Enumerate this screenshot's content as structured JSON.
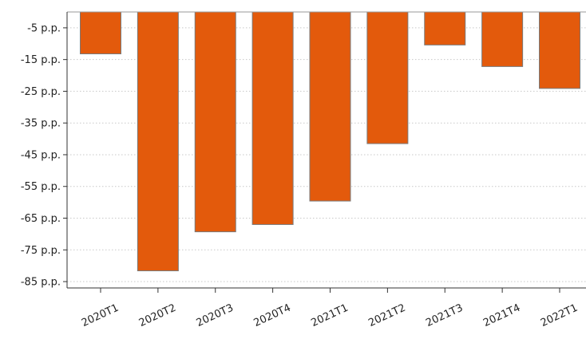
{
  "chart_data": {
    "type": "bar",
    "title": "",
    "xlabel": "",
    "ylabel": "",
    "categories": [
      "2020T1",
      "2020T2",
      "2020T3",
      "2020T4",
      "2021T1",
      "2021T2",
      "2021T3",
      "2021T4",
      "2022T1"
    ],
    "series": [
      {
        "values": [
          -13.2,
          -81.6,
          -69.3,
          -67.0,
          -59.6,
          -41.5,
          -10.4,
          -17.2,
          -24.1
        ]
      }
    ],
    "ylim": [
      -87,
      0
    ],
    "yticks": [
      -5,
      -15,
      -25,
      -35,
      -45,
      -55,
      -65,
      -75,
      -85
    ],
    "ytick_labels": [
      "-5 p.p.",
      "-15 p.p.",
      "-25 p.p.",
      "-35 p.p.",
      "-45 p.p.",
      "-55 p.p.",
      "-65 p.p.",
      "-75 p.p.",
      "-85 p.p."
    ],
    "grid": true,
    "legend": "none",
    "bar_color": "#e35a0c",
    "bar_edge_color": "#7a7a7a",
    "grid_color": "#c8c8c8",
    "axis_color": "#333333"
  }
}
